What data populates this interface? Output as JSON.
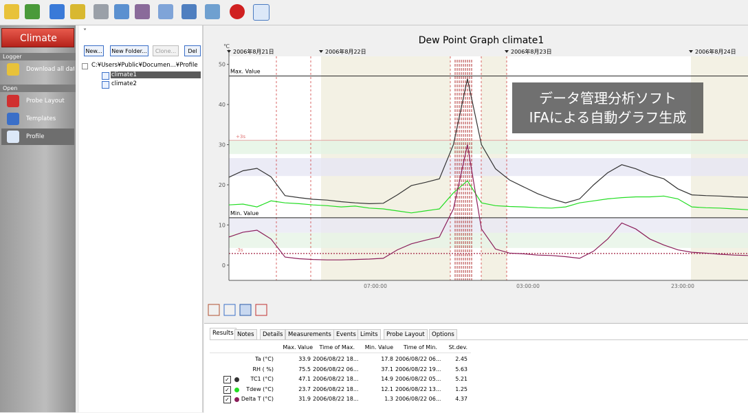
{
  "sidebar": {
    "app": "Climate",
    "sections": [
      {
        "title": "Logger",
        "items": [
          "Download all dat..."
        ]
      },
      {
        "title": "Open",
        "items": [
          "Probe Layout",
          "Templates",
          "Profile"
        ]
      }
    ],
    "selected": "Profile"
  },
  "folder_panel": {
    "collapse": "˅",
    "buttons": [
      "New...",
      "New Folder...",
      "Clone...",
      "Del"
    ],
    "disabled": [
      "Clone..."
    ],
    "root": "C:¥Users¥Public¥Documen...¥Profile",
    "items": [
      "climate1",
      "climate2"
    ],
    "selected": "climate1"
  },
  "graph": {
    "title": "Dew Point Graph climate1",
    "y_unit": "℃",
    "dates": [
      "2006年8月21日",
      "2006年8月22日",
      "2006年8月23日",
      "2006年8月24日"
    ],
    "times": [
      "07:00:00",
      "03:00:00",
      "23:00:00"
    ],
    "ylim": [
      -3.8,
      52
    ],
    "yticks": [
      0,
      10,
      20,
      30,
      40,
      50
    ],
    "max_label": "Max. Value",
    "max_value": 47.1,
    "min_label": "Min. Value",
    "min_value": 11.8,
    "plus3s_label": "+3s",
    "plus3s_value": 31.1,
    "minus3s_label": "-3s",
    "minus3s_value": 2.9,
    "series": [
      {
        "color": "#333333",
        "values": [
          21.9,
          23.5,
          24.1,
          22,
          17.3,
          16.8,
          16.4,
          16.2,
          15.8,
          15.5,
          15.3,
          15.4,
          17.5,
          19.8,
          20.6,
          21.5,
          30,
          46.4,
          30,
          24,
          21.2,
          19.5,
          17.8,
          16.5,
          15.5,
          16.5,
          20,
          23,
          25,
          24,
          22.5,
          21.5,
          19,
          17.5,
          17.3,
          17.2,
          17,
          16.9
        ]
      },
      {
        "color": "#22dd22",
        "values": [
          15,
          15.2,
          14.5,
          16,
          15.5,
          15.3,
          15,
          14.8,
          14.5,
          14.7,
          14.2,
          14,
          13.5,
          13,
          13.5,
          14,
          18,
          21,
          15.5,
          14.8,
          14.6,
          14.5,
          14.3,
          14.2,
          14.5,
          15.5,
          16,
          16.5,
          16.8,
          17,
          17,
          17.2,
          16.5,
          14.5,
          14.3,
          14.2,
          14,
          13.8
        ]
      },
      {
        "color": "#8b1e5a",
        "values": [
          7,
          8.2,
          8.7,
          6.5,
          2,
          1.6,
          1.4,
          1.3,
          1.3,
          1.4,
          1.5,
          1.7,
          3.8,
          5.3,
          6.2,
          7,
          14,
          30,
          9,
          4,
          3,
          2.8,
          2.5,
          2.4,
          2.1,
          1.7,
          3.5,
          6.5,
          10.5,
          9,
          6.5,
          5,
          3.8,
          3.2,
          3,
          2.7,
          2.5,
          2.4
        ]
      }
    ]
  },
  "overlay": {
    "lines": [
      "データ管理分析ソフト",
      "IFAによる自動グラフ生成"
    ]
  },
  "results": {
    "tabs": [
      "Results",
      "Notes",
      "Details",
      "Measurements",
      "Events",
      "Limits",
      "Probe Layout",
      "Options"
    ],
    "active": "Results",
    "columns": [
      "Max. Value",
      "Time of Max.",
      "Min. Value",
      "Time of Min.",
      "St.dev."
    ],
    "rows": [
      [
        "Ta (°C)",
        "33.9",
        "2006/08/22 18...",
        "17.8",
        "2006/08/22 06...",
        "2.45"
      ],
      [
        "RH ( %)",
        "75.5",
        "2006/08/22 06...",
        "37.1",
        "2006/08/22 19...",
        "5.63"
      ],
      [
        "TC1 (°C)",
        "47.1",
        "2006/08/22 18...",
        "14.9",
        "2006/08/22 05...",
        "5.21"
      ],
      [
        "Tdew (°C)",
        "23.7",
        "2006/08/22 18...",
        "12.1",
        "2006/08/22 13...",
        "1.25"
      ],
      [
        "Delta T (°C)",
        "31.9",
        "2006/08/22 18...",
        "1.3",
        "2006/08/22 06...",
        "4.37"
      ]
    ],
    "checked": [
      false,
      false,
      true,
      true,
      true
    ]
  }
}
